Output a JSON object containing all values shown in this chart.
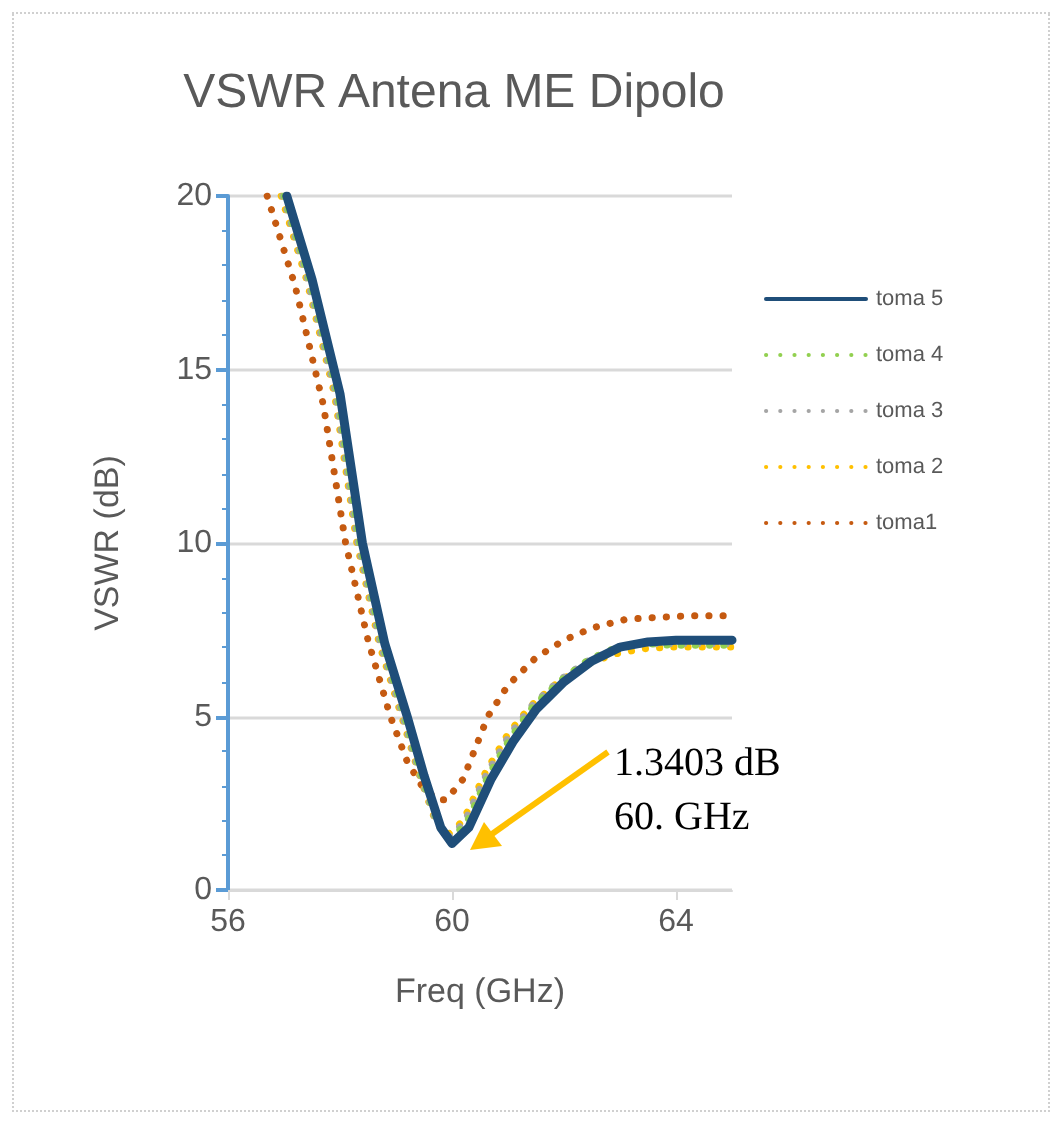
{
  "chart_data": {
    "type": "line",
    "title": "VSWR Antena ME Dipolo",
    "xlabel": "Freq (GHz)",
    "ylabel": "VSWR (dB)",
    "xlim": [
      56,
      65
    ],
    "xticks": [
      56,
      60,
      64
    ],
    "ylim": [
      0,
      20
    ],
    "yticks": [
      0,
      5,
      10,
      15,
      20
    ],
    "grid": "y",
    "legend": "right",
    "marker": "none",
    "annotations": [
      "1.3403 dB\n60. GHz"
    ],
    "series": [
      {
        "name": "toma 5",
        "color": "#1f4e79",
        "line_style": "solid",
        "x": [
          57.05,
          57.5,
          58,
          58.4,
          58.8,
          59.2,
          59.5,
          59.8,
          60,
          60.3,
          60.7,
          61.1,
          61.5,
          62,
          62.5,
          63,
          63.5,
          64,
          65
        ],
        "values": [
          20,
          17.6,
          14.3,
          10,
          7.1,
          5,
          3.3,
          1.8,
          1.3403,
          1.8,
          3.2,
          4.3,
          5.2,
          6,
          6.6,
          7,
          7.15,
          7.2,
          7.2
        ]
      },
      {
        "name": "toma 4",
        "color": "#92d050",
        "line_style": "dotted",
        "x": [
          57.0,
          57.45,
          57.95,
          58.35,
          58.75,
          59.15,
          59.45,
          59.75,
          59.95,
          60.25,
          60.65,
          61.05,
          61.45,
          61.95,
          62.45,
          62.95,
          63.45,
          63.95,
          65
        ],
        "values": [
          20,
          17.6,
          14.3,
          10,
          7.1,
          5,
          3.3,
          1.9,
          1.45,
          1.9,
          3.3,
          4.4,
          5.3,
          6.05,
          6.65,
          7,
          7.1,
          7.05,
          7.05
        ]
      },
      {
        "name": "toma 3",
        "color": "#a5a5a5",
        "line_style": "dotted",
        "x": [
          56.98,
          57.42,
          57.92,
          58.32,
          58.72,
          59.12,
          59.42,
          59.72,
          59.93,
          60.22,
          60.62,
          61.02,
          61.42,
          61.92,
          62.42,
          62.92,
          63.42,
          63.92,
          65
        ],
        "values": [
          20,
          17.6,
          14.3,
          10,
          7.1,
          5,
          3.35,
          1.95,
          1.5,
          1.95,
          3.35,
          4.45,
          5.3,
          6.05,
          6.6,
          6.95,
          7.1,
          7.1,
          7.1
        ]
      },
      {
        "name": "toma 2",
        "color": "#ffc000",
        "line_style": "dotted",
        "x": [
          56.95,
          57.4,
          57.9,
          58.3,
          58.7,
          59.1,
          59.4,
          59.7,
          59.9,
          60.2,
          60.6,
          61.0,
          61.4,
          61.9,
          62.4,
          62.9,
          63.4,
          63.9,
          65
        ],
        "values": [
          20,
          17.6,
          14.3,
          10,
          7.1,
          5,
          3.4,
          2.0,
          1.55,
          2.0,
          3.4,
          4.5,
          5.3,
          6,
          6.5,
          6.8,
          6.95,
          7,
          7
        ]
      },
      {
        "name": "toma1",
        "color": "#c55a11",
        "line_style": "dotted",
        "x": [
          56.7,
          57.2,
          57.7,
          58.1,
          58.5,
          58.9,
          59.2,
          59.5,
          59.75,
          59.9,
          60.2,
          60.64,
          61,
          61.5,
          62,
          62.5,
          63.1,
          63.6,
          64.2,
          65
        ],
        "values": [
          20,
          17.4,
          14,
          10,
          7.2,
          5,
          3.7,
          2.9,
          2.6,
          2.6,
          3.2,
          5,
          5.9,
          6.7,
          7.2,
          7.55,
          7.8,
          7.85,
          7.9,
          7.9
        ]
      }
    ]
  }
}
